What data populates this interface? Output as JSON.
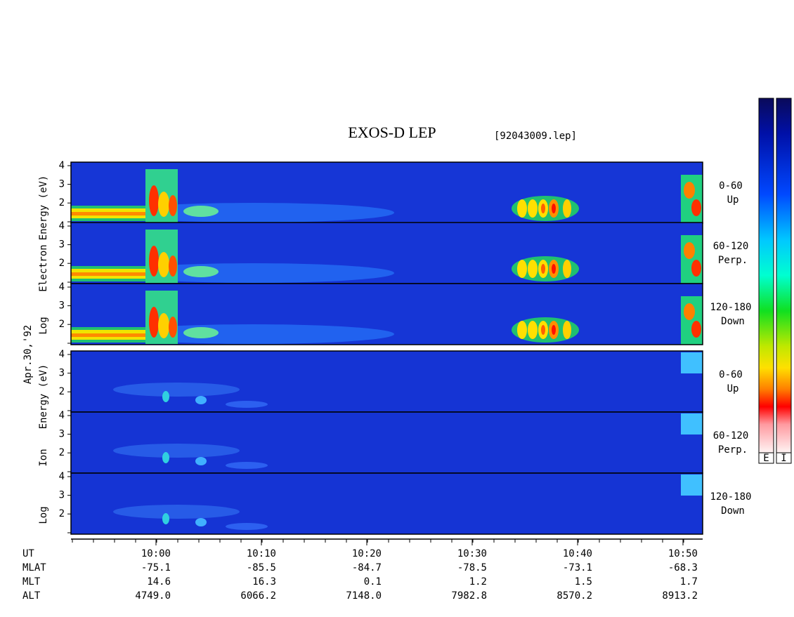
{
  "title": "EXOS-D LEP",
  "file": "[92043009.lep]",
  "date": "Apr.30,'92",
  "y_tick_labels": [
    "4",
    "3",
    "2"
  ],
  "electron": {
    "axis_label": [
      "Log",
      "Electron",
      "Energy (eV)"
    ],
    "panels": [
      {
        "range": "0-60",
        "direction": "Up"
      },
      {
        "range": "60-120",
        "direction": "Perp."
      },
      {
        "range": "120-180",
        "direction": "Down"
      }
    ]
  },
  "ion": {
    "axis_label": [
      "Log",
      "Ion",
      "Energy (eV)"
    ],
    "panels": [
      {
        "range": "0-60",
        "direction": "Up"
      },
      {
        "range": "60-120",
        "direction": "Perp."
      },
      {
        "range": "120-180",
        "direction": "Down"
      }
    ]
  },
  "ephemeris": {
    "row_names": [
      "UT",
      "MLAT",
      "MLT",
      "ALT"
    ],
    "ut": [
      "10:00",
      "10:10",
      "10:20",
      "10:30",
      "10:40",
      "10:50"
    ],
    "mlat": [
      "-75.1",
      "-85.5",
      "-84.7",
      "-78.5",
      "-73.1",
      "-68.3"
    ],
    "mlt": [
      "14.6",
      "16.3",
      "0.1",
      "1.2",
      "1.5",
      "1.7"
    ],
    "alt": [
      "4749.0",
      "6066.2",
      "7148.0",
      "7982.8",
      "8570.2",
      "8913.2"
    ]
  },
  "colorbars": [
    "E",
    "I"
  ]
}
